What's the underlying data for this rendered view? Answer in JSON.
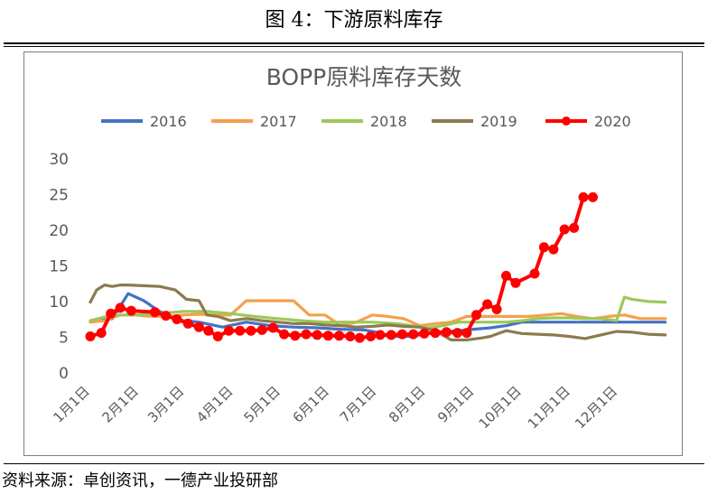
{
  "figure_caption": "图 4：下游原料库存",
  "source_note": "资料来源：卓创资讯，一德产业投研部",
  "colors": {
    "2016": "#4472c4",
    "2017": "#f4a14a",
    "2018": "#9bc95a",
    "2019": "#8c7b4f",
    "2020": "#ff0000"
  },
  "chart_data": {
    "type": "line",
    "title": "BOPP原料库存天数",
    "xlabel": "",
    "ylabel": "",
    "ylim": [
      0,
      30
    ],
    "yticks": [
      0,
      5,
      10,
      15,
      20,
      25,
      30
    ],
    "x_tick_labels": [
      "1月1日",
      "2月1日",
      "3月1日",
      "4月1日",
      "5月1日",
      "6月1日",
      "7月1日",
      "8月1日",
      "9月1日",
      "10月1日",
      "11月1日",
      "12月1日"
    ],
    "x_unit": "day of year",
    "legend_position": "top",
    "grid": false,
    "series": [
      {
        "name": "2016",
        "x": [
          1,
          15,
          25,
          35,
          45,
          60,
          70,
          85,
          100,
          115,
          130,
          145,
          160,
          175,
          185,
          190,
          205,
          220,
          235,
          244,
          255,
          265,
          275,
          290,
          305,
          320,
          335,
          350,
          366
        ],
        "values": [
          7,
          7.5,
          11,
          10,
          8.5,
          7.2,
          7,
          6.3,
          7,
          6.5,
          6.3,
          6.2,
          6,
          5.9,
          5.5,
          5,
          5,
          5.6,
          5.8,
          6,
          6.2,
          6.5,
          7,
          7,
          7,
          7,
          7,
          7,
          7
        ]
      },
      {
        "name": "2017",
        "x": [
          1,
          10,
          20,
          30,
          40,
          50,
          60,
          70,
          80,
          90,
          100,
          110,
          120,
          125,
          130,
          140,
          150,
          160,
          170,
          180,
          190,
          200,
          210,
          220,
          230,
          240,
          250,
          260,
          270,
          280,
          290,
          300,
          310,
          320,
          330,
          340,
          350,
          366
        ],
        "values": [
          7,
          7.2,
          8,
          8,
          7.8,
          7.8,
          8,
          8.1,
          8,
          8,
          10,
          10,
          10,
          10,
          10,
          8,
          8,
          6.5,
          7,
          8,
          7.8,
          7.5,
          6.5,
          6.8,
          7,
          7.8,
          7.8,
          7.8,
          7.8,
          7.8,
          8,
          8.2,
          7.8,
          7.5,
          7.8,
          8,
          7.5,
          7.5
        ]
      },
      {
        "name": "2018",
        "x": [
          1,
          15,
          30,
          45,
          60,
          75,
          90,
          105,
          120,
          135,
          150,
          165,
          180,
          195,
          205,
          215,
          225,
          235,
          245,
          255,
          265,
          275,
          285,
          295,
          305,
          315,
          325,
          335,
          340,
          345,
          355,
          366
        ],
        "values": [
          7.2,
          8,
          8,
          8.2,
          8.5,
          8.5,
          8.2,
          7.8,
          7.5,
          7.2,
          7,
          7,
          7,
          6.8,
          6.5,
          6.2,
          6.5,
          7,
          7,
          7,
          7,
          7.2,
          7.5,
          7.6,
          7.6,
          7.5,
          7.5,
          7.2,
          10.5,
          10.2,
          9.9,
          9.8
        ]
      },
      {
        "name": "2019",
        "x": [
          1,
          5,
          10,
          15,
          20,
          25,
          35,
          45,
          55,
          62,
          70,
          75,
          82,
          90,
          100,
          110,
          120,
          130,
          140,
          150,
          160,
          170,
          180,
          190,
          200,
          210,
          220,
          230,
          240,
          250,
          255,
          260,
          265,
          275,
          285,
          295,
          305,
          315,
          325,
          335,
          345,
          355,
          366
        ],
        "values": [
          9.8,
          11.5,
          12.2,
          12,
          12.2,
          12.2,
          12.1,
          12,
          11.5,
          10.2,
          10,
          8,
          7.8,
          7.2,
          7.5,
          7.2,
          7,
          6.8,
          6.8,
          6.6,
          6.5,
          6.3,
          6.4,
          6.6,
          6.4,
          6.3,
          5.8,
          4.5,
          4.5,
          4.8,
          5,
          5.4,
          5.8,
          5.4,
          5.3,
          5.2,
          5,
          4.7,
          5.2,
          5.7,
          5.6,
          5.3,
          5.2
        ]
      },
      {
        "name": "2020",
        "x": [
          1,
          8,
          14,
          20,
          27,
          42,
          49,
          56,
          63,
          70,
          76,
          82,
          89,
          96,
          103,
          110,
          117,
          124,
          131,
          138,
          145,
          152,
          159,
          166,
          172,
          179,
          185,
          192,
          199,
          206,
          213,
          220,
          227,
          234,
          240,
          246,
          253,
          259,
          265,
          271,
          283,
          289,
          295,
          302,
          308,
          314,
          320
        ],
        "values": [
          5,
          5.5,
          8.2,
          9,
          8.6,
          8.4,
          7.9,
          7.4,
          6.8,
          6.3,
          5.8,
          5,
          5.8,
          5.8,
          5.8,
          5.9,
          6.2,
          5.3,
          5.1,
          5.3,
          5.2,
          5.1,
          5.1,
          5,
          4.8,
          5,
          5.2,
          5.2,
          5.3,
          5.3,
          5.4,
          5.5,
          5.6,
          5.5,
          5.5,
          8,
          9.5,
          8.8,
          13.5,
          12.5,
          13.8,
          17.5,
          17.2,
          20,
          20.2,
          24.5,
          24.5
        ]
      }
    ]
  }
}
